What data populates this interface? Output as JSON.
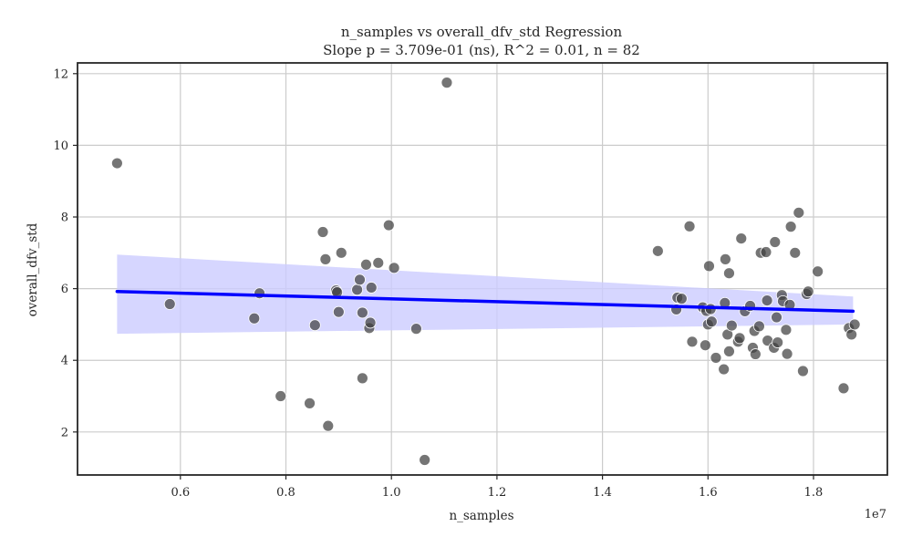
{
  "colors": {
    "point_fill": "#404040",
    "point_edge": "#ffffff",
    "regression_line": "#0000ff",
    "confidence_band": "#ccccff",
    "grid": "#cccccc",
    "axes": "#262626"
  },
  "chart_data": {
    "type": "scatter",
    "title": "n_samples vs overall_dfv_std Regression",
    "subtitle": "Slope p = 3.709e-01 (ns), R^2 = 0.01, n = 82",
    "xlabel": "n_samples",
    "ylabel": "overall_dfv_std",
    "x_offset_label": "1e7",
    "xlim": [
      0.405,
      1.94
    ],
    "ylim": [
      0.8,
      12.3
    ],
    "xticks": [
      0.6,
      0.8,
      1.0,
      1.2,
      1.4,
      1.6,
      1.8
    ],
    "xtick_labels": [
      "0.6",
      "0.8",
      "1.0",
      "1.2",
      "1.4",
      "1.6",
      "1.8"
    ],
    "yticks": [
      2,
      4,
      6,
      8,
      10,
      12
    ],
    "ytick_labels": [
      "2",
      "4",
      "6",
      "8",
      "10",
      "12"
    ],
    "grid": true,
    "regression": {
      "x": [
        0.48,
        1.875
      ],
      "y": [
        5.92,
        5.37
      ],
      "ci_lower": [
        4.74,
        5.0
      ],
      "ci_upper": [
        6.95,
        5.78
      ]
    },
    "points": [
      [
        0.48,
        9.5
      ],
      [
        0.58,
        5.57
      ],
      [
        0.74,
        5.17
      ],
      [
        0.75,
        5.87
      ],
      [
        0.79,
        3.0
      ],
      [
        0.845,
        2.8
      ],
      [
        0.855,
        4.98
      ],
      [
        0.87,
        7.58
      ],
      [
        0.875,
        6.82
      ],
      [
        0.88,
        2.17
      ],
      [
        0.895,
        5.95
      ],
      [
        0.897,
        5.9
      ],
      [
        0.9,
        5.35
      ],
      [
        0.905,
        7.0
      ],
      [
        0.935,
        5.97
      ],
      [
        0.94,
        6.25
      ],
      [
        0.945,
        3.5
      ],
      [
        0.945,
        5.33
      ],
      [
        0.952,
        6.67
      ],
      [
        0.958,
        4.9
      ],
      [
        0.96,
        5.05
      ],
      [
        0.962,
        6.03
      ],
      [
        0.975,
        6.72
      ],
      [
        0.995,
        7.77
      ],
      [
        1.005,
        6.58
      ],
      [
        1.047,
        4.88
      ],
      [
        1.063,
        1.22
      ],
      [
        1.105,
        11.75
      ],
      [
        1.505,
        7.05
      ],
      [
        1.54,
        5.42
      ],
      [
        1.542,
        5.75
      ],
      [
        1.55,
        5.72
      ],
      [
        1.565,
        7.74
      ],
      [
        1.57,
        4.52
      ],
      [
        1.59,
        5.48
      ],
      [
        1.595,
        4.42
      ],
      [
        1.597,
        5.38
      ],
      [
        1.6,
        5.0
      ],
      [
        1.602,
        6.63
      ],
      [
        1.605,
        5.43
      ],
      [
        1.607,
        5.08
      ],
      [
        1.615,
        4.07
      ],
      [
        1.63,
        3.75
      ],
      [
        1.632,
        5.6
      ],
      [
        1.633,
        6.82
      ],
      [
        1.637,
        4.72
      ],
      [
        1.64,
        6.43
      ],
      [
        1.64,
        4.25
      ],
      [
        1.645,
        4.97
      ],
      [
        1.657,
        4.52
      ],
      [
        1.66,
        4.62
      ],
      [
        1.663,
        7.4
      ],
      [
        1.67,
        5.37
      ],
      [
        1.68,
        5.52
      ],
      [
        1.685,
        4.35
      ],
      [
        1.688,
        4.82
      ],
      [
        1.69,
        4.17
      ],
      [
        1.697,
        4.95
      ],
      [
        1.7,
        7.0
      ],
      [
        1.71,
        7.02
      ],
      [
        1.712,
        5.67
      ],
      [
        1.713,
        4.55
      ],
      [
        1.725,
        4.35
      ],
      [
        1.727,
        7.3
      ],
      [
        1.73,
        5.2
      ],
      [
        1.732,
        4.5
      ],
      [
        1.74,
        5.82
      ],
      [
        1.742,
        5.65
      ],
      [
        1.748,
        4.85
      ],
      [
        1.75,
        4.18
      ],
      [
        1.755,
        5.55
      ],
      [
        1.757,
        7.73
      ],
      [
        1.765,
        7.0
      ],
      [
        1.772,
        8.12
      ],
      [
        1.78,
        3.7
      ],
      [
        1.787,
        5.85
      ],
      [
        1.79,
        5.92
      ],
      [
        1.808,
        6.48
      ],
      [
        1.857,
        3.22
      ],
      [
        1.867,
        4.9
      ],
      [
        1.872,
        4.72
      ],
      [
        1.878,
        5.0
      ]
    ]
  }
}
